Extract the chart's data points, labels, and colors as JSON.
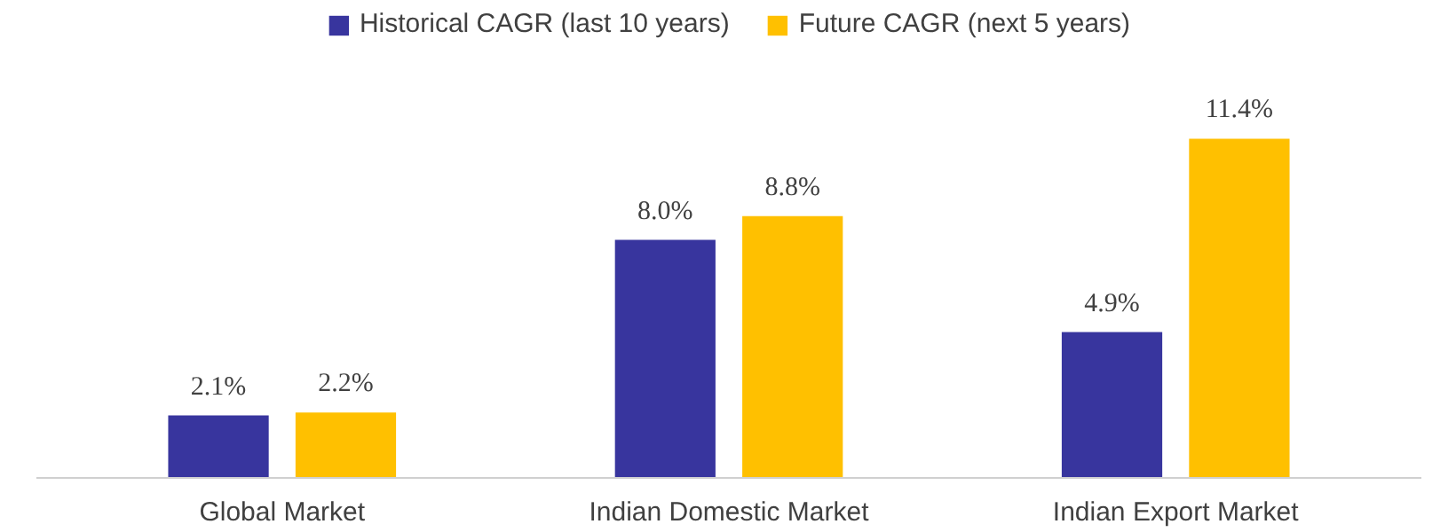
{
  "chart_data": {
    "type": "bar",
    "categories": [
      "Global Market",
      "Indian Domestic Market",
      "Indian Export Market"
    ],
    "series": [
      {
        "name": "Historical CAGR (last 10 years)",
        "color": "#38359e",
        "values": [
          2.1,
          8.0,
          4.9
        ],
        "value_labels": [
          "2.1%",
          "8.0%",
          "4.9%"
        ]
      },
      {
        "name": "Future CAGR (next 5 years)",
        "color": "#ffc000",
        "values": [
          2.2,
          8.8,
          11.4
        ],
        "value_labels": [
          "2.2%",
          "8.8%",
          "11.4%"
        ]
      }
    ],
    "legend": "top",
    "grid": false
  }
}
